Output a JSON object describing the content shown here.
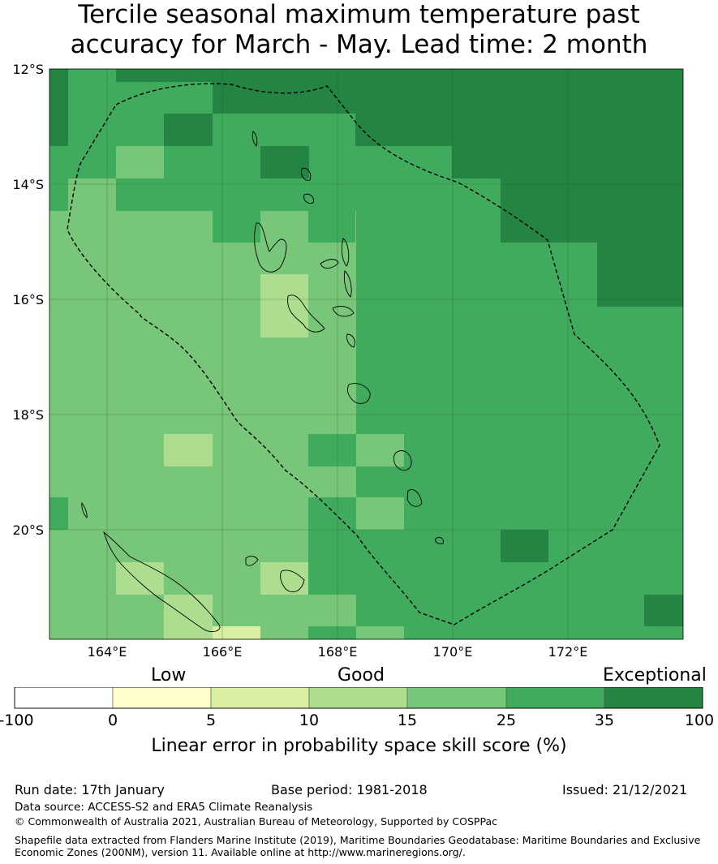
{
  "title": {
    "line1": "Tercile seasonal maximum temperature past",
    "line2": "accuracy for March - May. Lead time: 2 month"
  },
  "map": {
    "lat_labels": [
      "12°S",
      "14°S",
      "16°S",
      "18°S",
      "20°S"
    ],
    "lon_labels": [
      "164°E",
      "166°E",
      "168°E",
      "170°E",
      "172°E"
    ],
    "extent": {
      "lon_min": 163.0,
      "lon_max": 174.0,
      "lat_max": -12.0,
      "lat_min": -21.9
    },
    "grid_color": "#2b5a2b",
    "eez_boundary": "dashed"
  },
  "colorbar": {
    "category_words": [
      "Low",
      "Good",
      "Exceptional"
    ],
    "tick_labels": [
      "-100",
      "0",
      "5",
      "10",
      "15",
      "25",
      "35",
      "100"
    ],
    "colors": [
      "#ffffff",
      "#ffffcc",
      "#d9f0a3",
      "#addd8e",
      "#78c679",
      "#41ab5d",
      "#238443"
    ],
    "label": "Linear error in probability space skill score (%)"
  },
  "footer": {
    "run_date": "Run date: 17th January",
    "base_period": "Base period: 1981-2018",
    "issued": "Issued: 21/12/2021",
    "data_source": "Data source: ACCESS-S2 and ERA5 Climate Reanalysis",
    "copyright": "© Commonwealth of Australia 2021, Australian Bureau of Meteorology, Supported by COSPPac",
    "shapefile_line1": "Shapefile data extracted from Flanders Marine Institute (2019), Maritime Boundaries Geodatabase: Maritime Boundaries and Exclusive",
    "shapefile_line2": "Economic Zones (200NM), version 11. Available online at http://www.marineregions.org/."
  }
}
